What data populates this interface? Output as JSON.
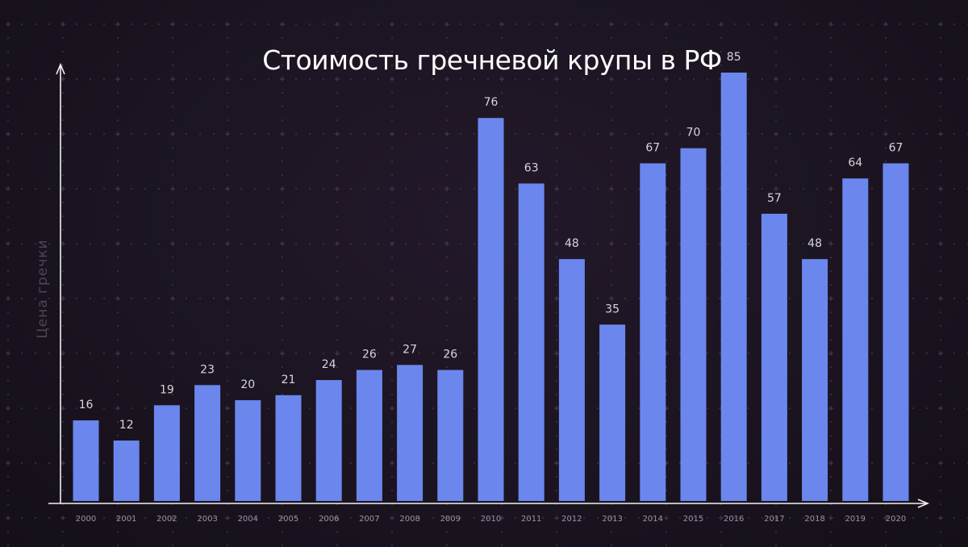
{
  "chart_data": {
    "type": "bar",
    "title": "Стоимость гречневой крупы в РФ",
    "xlabel": "",
    "ylabel": "Цена гречки",
    "categories": [
      "2000",
      "2001",
      "2002",
      "2003",
      "2004",
      "2005",
      "2006",
      "2007",
      "2008",
      "2009",
      "2010",
      "2011",
      "2012",
      "2013",
      "2014",
      "2015",
      "2016",
      "2017",
      "2018",
      "2019",
      "2020"
    ],
    "values": [
      16,
      12,
      19,
      23,
      20,
      21,
      24,
      26,
      27,
      26,
      76,
      63,
      48,
      35,
      67,
      70,
      85,
      57,
      48,
      64,
      67
    ],
    "ylim": [
      0,
      85
    ],
    "bar_color": "#6b87ee",
    "background_color": "#1b1420",
    "grid": "dotted"
  }
}
